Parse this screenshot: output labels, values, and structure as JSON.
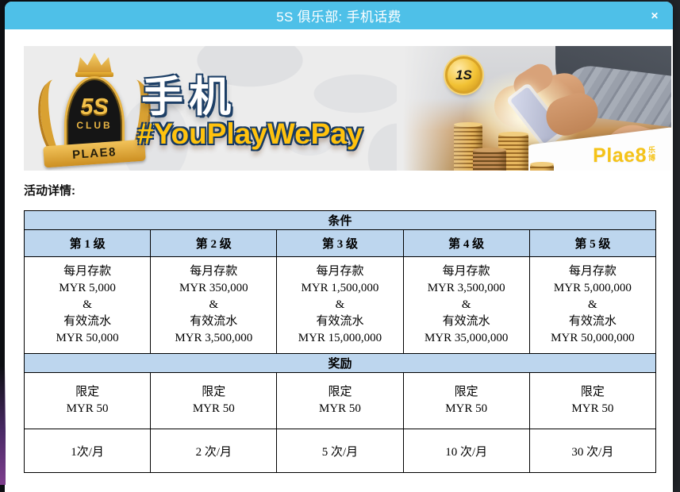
{
  "modal": {
    "title": "5S 俱乐部: 手机话费",
    "close_label": "✕"
  },
  "banner": {
    "badge": {
      "five_s": "5S",
      "club": "CLUB",
      "ribbon": "PLAE8"
    },
    "headline": "手机",
    "hashtag": "#YouPlayWePay",
    "medal": "1S",
    "brand": "Plae8",
    "brand_cn_top": "乐",
    "brand_cn_bottom": "博"
  },
  "section_label": "活动详情:",
  "table": {
    "conditions_header": "条件",
    "levels": [
      "第 1 级",
      "第 2 级",
      "第 3 级",
      "第 4 级",
      "第 5 级"
    ],
    "conditions": [
      "每月存款\nMYR 5,000\n&\n有效流水\nMYR 50,000",
      "每月存款\nMYR 350,000\n&\n有效流水\nMYR 3,500,000",
      "每月存款\nMYR 1,500,000\n&\n有效流水\nMYR 15,000,000",
      "每月存款\nMYR 3,500,000\n&\n有效流水\nMYR 35,000,000",
      "每月存款\nMYR 5,000,000\n&\n有效流水\nMYR 50,000,000"
    ],
    "rewards_header": "奖励",
    "limit": "限定\nMYR 50",
    "frequencies": [
      "1次/月",
      "2 次/月",
      "5 次/月",
      "10 次/月",
      "30 次/月"
    ]
  },
  "colors": {
    "header_bar": "#4EC0E8",
    "table_header_bg": "#BDD6EE",
    "hashtag_gold": "#FFC20E",
    "brand_yellow": "#F5C318",
    "badge_gold": "#E9B544",
    "backdrop": "#14161B"
  }
}
